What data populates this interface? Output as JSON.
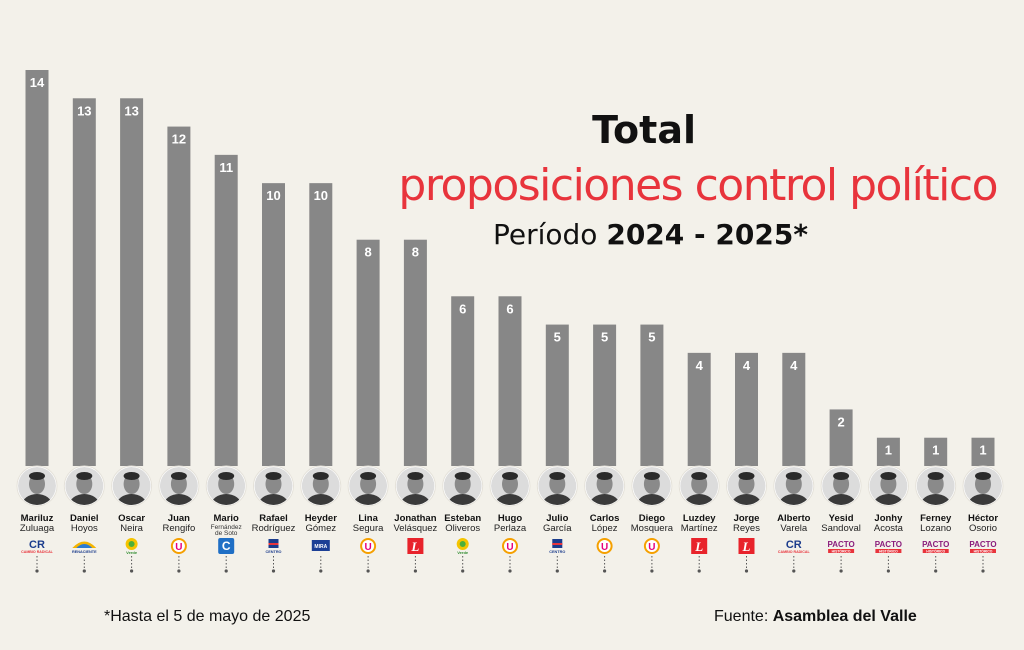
{
  "title": {
    "line1": "Total",
    "line2": "proposiciones control político",
    "period_label": "Período ",
    "period_value": "2024 - 2025*"
  },
  "footnote": "*Hasta el 5 de mayo de 2025",
  "source": {
    "label": "Fuente: ",
    "value": "Asamblea del Valle"
  },
  "colors": {
    "bar": "#878787",
    "accent": "#e8343c",
    "background": "#f3f1ea"
  },
  "chart_data": {
    "type": "bar",
    "categories": [
      "Mariluz Zuluaga",
      "Daniel Hoyos",
      "Oscar Neira",
      "Juan Rengifo",
      "Mario Fernández de Soto",
      "Rafael Rodríguez",
      "Heyder Gómez",
      "Lina Segura",
      "Jonathan Velásquez",
      "Esteban Oliveros",
      "Hugo Perlaza",
      "Julio García",
      "Carlos López",
      "Diego Mosquera",
      "Luzdey Martínez",
      "Jorge Reyes",
      "Alberto Varela",
      "Yesid Sandoval",
      "Jonhy Acosta",
      "Ferney Lozano",
      "Héctor Osorio"
    ],
    "values": [
      14,
      13,
      13,
      12,
      11,
      10,
      10,
      8,
      8,
      6,
      6,
      5,
      5,
      5,
      4,
      4,
      4,
      2,
      1,
      1,
      1
    ],
    "ylim": [
      0,
      14
    ]
  },
  "people": [
    {
      "first": "Mariluz",
      "last": "Zuluaga",
      "party": "CR",
      "party_text": "CAMBIO RADICAL",
      "logo": "cambio-radical-logo"
    },
    {
      "first": "Daniel",
      "last": "Hoyos",
      "party": "",
      "party_text": "RENACIENTE",
      "logo": "renaciente-logo"
    },
    {
      "first": "Oscar",
      "last": "Neira",
      "party": "",
      "party_text": "Verde",
      "logo": "alianza-verde-logo"
    },
    {
      "first": "Juan",
      "last": "Rengifo",
      "party": "U",
      "party_text": "",
      "logo": "partido-u-logo"
    },
    {
      "first": "Mario",
      "last": "Fernández de Soto",
      "party": "C",
      "party_text": "",
      "logo": "conservador-logo"
    },
    {
      "first": "Rafael",
      "last": "Rodríguez",
      "party": "",
      "party_text": "CENTRO",
      "logo": "centro-democratico-logo"
    },
    {
      "first": "Heyder",
      "last": "Gómez",
      "party": "",
      "party_text": "MIRA",
      "logo": "mira-logo"
    },
    {
      "first": "Lina",
      "last": "Segura",
      "party": "U",
      "party_text": "",
      "logo": "partido-u-logo"
    },
    {
      "first": "Jonathan",
      "last": "Velásquez",
      "party": "L",
      "party_text": "",
      "logo": "liberal-logo"
    },
    {
      "first": "Esteban",
      "last": "Oliveros",
      "party": "",
      "party_text": "Verde",
      "logo": "alianza-verde-logo"
    },
    {
      "first": "Hugo",
      "last": "Perlaza",
      "party": "U",
      "party_text": "",
      "logo": "partido-u-logo"
    },
    {
      "first": "Julio",
      "last": "García",
      "party": "",
      "party_text": "CENTRO",
      "logo": "centro-democratico-logo"
    },
    {
      "first": "Carlos",
      "last": "López",
      "party": "U",
      "party_text": "",
      "logo": "partido-u-logo"
    },
    {
      "first": "Diego",
      "last": "Mosquera",
      "party": "U",
      "party_text": "",
      "logo": "partido-u-logo"
    },
    {
      "first": "Luzdey",
      "last": "Martínez",
      "party": "L",
      "party_text": "",
      "logo": "liberal-logo"
    },
    {
      "first": "Jorge",
      "last": "Reyes",
      "party": "L",
      "party_text": "",
      "logo": "liberal-logo"
    },
    {
      "first": "Alberto",
      "last": "Varela",
      "party": "CR",
      "party_text": "CAMBIO RADICAL",
      "logo": "cambio-radical-logo"
    },
    {
      "first": "Yesid",
      "last": "Sandoval",
      "party": "PACTO",
      "party_text": "HISTÓRICO",
      "logo": "pacto-historico-logo"
    },
    {
      "first": "Jonhy",
      "last": "Acosta",
      "party": "PACTO",
      "party_text": "HISTÓRICO",
      "logo": "pacto-historico-logo"
    },
    {
      "first": "Ferney",
      "last": "Lozano",
      "party": "PACTO",
      "party_text": "HISTÓRICO",
      "logo": "pacto-historico-logo"
    },
    {
      "first": "Héctor",
      "last": "Osorio",
      "party": "PACTO",
      "party_text": "HISTÓRICO",
      "logo": "pacto-historico-logo"
    }
  ]
}
